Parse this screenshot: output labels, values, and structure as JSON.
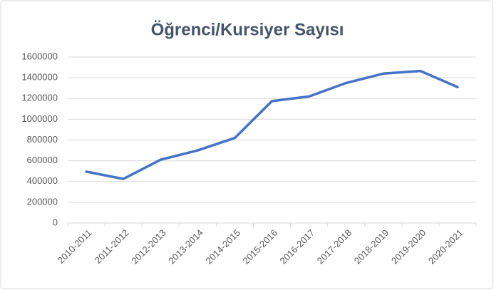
{
  "chart_data": {
    "type": "line",
    "title": "Öğrenci/Kursiyer Sayısı",
    "categories": [
      "2010-2011",
      "2011-2012",
      "2012-2013",
      "2013-2014",
      "2014-2015",
      "2015-2016",
      "2016-2017",
      "2017-2018",
      "2018-2019",
      "2019-2020",
      "2020-2021"
    ],
    "values": [
      495000,
      425000,
      610000,
      700000,
      820000,
      1175000,
      1220000,
      1350000,
      1440000,
      1465000,
      1310000
    ],
    "color": "#4472c4",
    "ylim": [
      0,
      1600000
    ],
    "yticks": [
      0,
      200000,
      400000,
      600000,
      800000,
      1000000,
      1200000,
      1400000,
      1600000
    ],
    "grid": true
  }
}
